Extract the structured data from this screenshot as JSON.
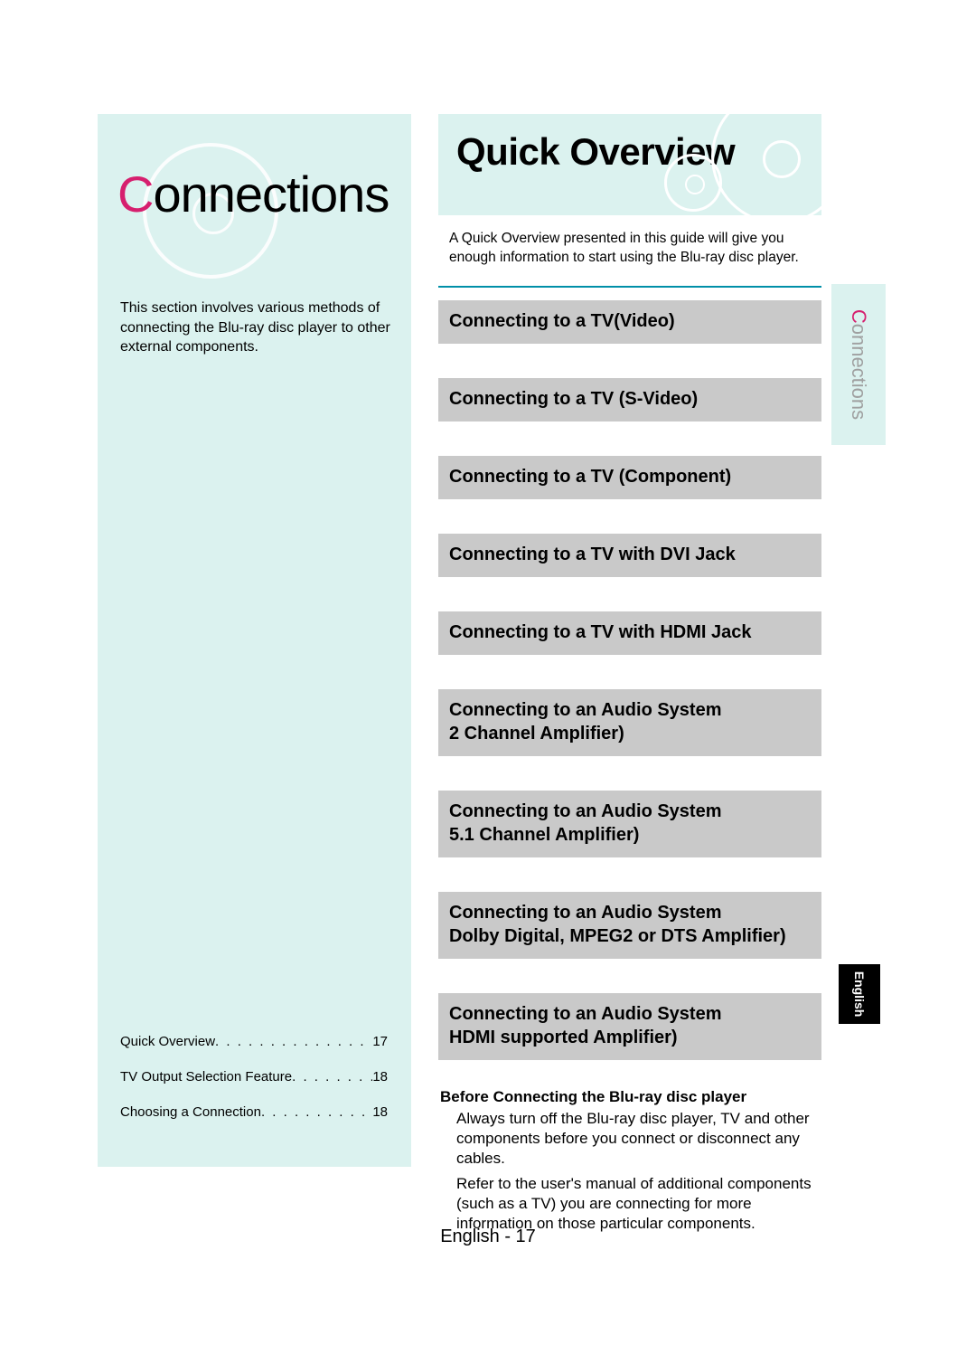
{
  "colors": {
    "panel_bg": "#dbf2ef",
    "accent_pink": "#d61f6e",
    "rule_teal": "#008fa8",
    "topic_bg": "#c9c9c9",
    "tab_gray": "#9fa0a0",
    "black": "#000000",
    "white": "#ffffff"
  },
  "left": {
    "title_first": "C",
    "title_rest": "onnections",
    "body": "This section involves various methods of connecting the Blu-ray disc player to other external components.",
    "toc": [
      {
        "label": "Quick Overview",
        "page": "17"
      },
      {
        "label": "TV Output Selection Feature",
        "page": "18"
      },
      {
        "label": "Choosing a Connection",
        "page": "18"
      }
    ]
  },
  "right": {
    "title": "Quick Overview",
    "intro": "A Quick Overview presented in this guide will give you enough information to start using the Blu-ray disc player.",
    "topics": [
      "Connecting to a TV(Video)",
      "Connecting to a TV (S-Video)",
      "Connecting to a TV (Component)",
      "Connecting to a TV with DVI Jack",
      "Connecting to a TV with HDMI Jack",
      "Connecting to an Audio System\n2 Channel Amplifier)",
      "Connecting to an Audio System\n5.1 Channel Amplifier)",
      "Connecting to an Audio System\nDolby Digital, MPEG2 or DTS Amplifier)",
      "Connecting to an Audio System\nHDMI supported Amplifier)"
    ],
    "before": {
      "title": "Before Connecting the Blu-ray disc player",
      "p1": "Always turn off the Blu-ray disc player, TV and other components before you connect or disconnect any cables.",
      "p2": "Refer to the user's manual of additional components (such as a TV) you are connecting for more information on those particular components."
    }
  },
  "sideTab": {
    "first": "C",
    "rest": "onnections"
  },
  "langTab": "English",
  "footer": "English - 17"
}
